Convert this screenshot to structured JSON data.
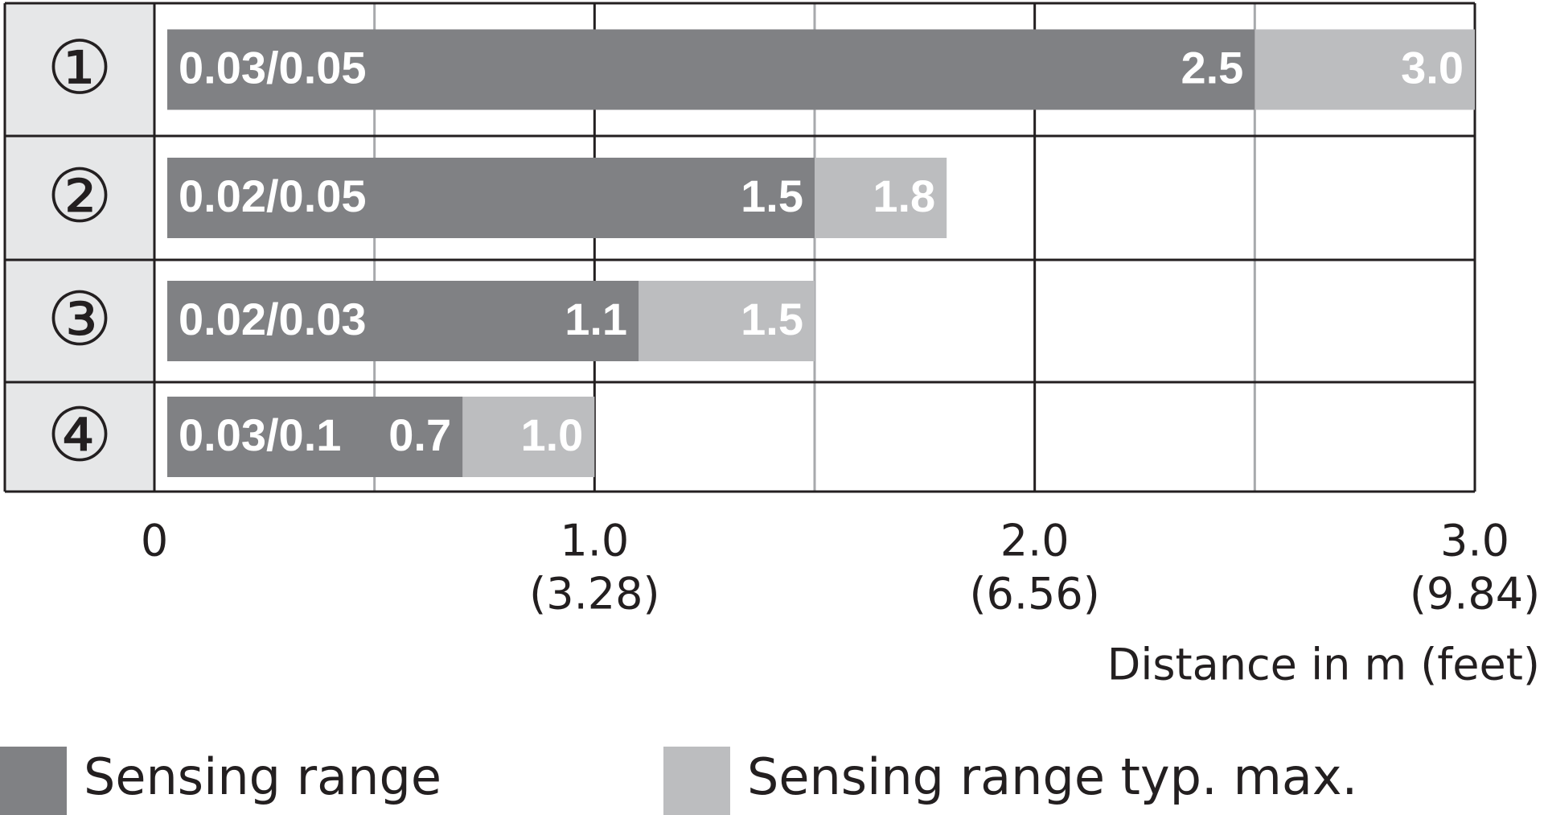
{
  "chart_data": {
    "type": "bar",
    "orientation": "horizontal",
    "categories": [
      "①",
      "②",
      "③",
      "④"
    ],
    "min_labels": [
      "0.03/0.05",
      "0.02/0.05",
      "0.02/0.03",
      "0.03/0.1"
    ],
    "series": [
      {
        "name": "Sensing range typ. max.",
        "color": "#bcbdbf",
        "values": [
          3.0,
          1.8,
          1.5,
          1.0
        ],
        "value_labels": [
          "3.0",
          "1.8",
          "1.5",
          "1.0"
        ]
      },
      {
        "name": "Sensing range",
        "color": "#808184",
        "values": [
          2.5,
          1.5,
          1.1,
          0.7
        ]
      }
    ],
    "xlim": [
      0,
      3
    ],
    "xticks": [
      0,
      {
        "value": 1,
        "label": "1.0"
      },
      {
        "value": 2,
        "label": "2.0"
      },
      {
        "value": 3,
        "label": "3.0"
      }
    ],
    "xtick_sublabels": [
      null,
      "(3.28)",
      "(6.56)",
      "(9.84)"
    ],
    "minor_xticks": [
      0.5,
      1.5,
      2.5
    ],
    "xlabel": "Distance in m (feet)",
    "grid": true,
    "legend_order": [
      1,
      0
    ],
    "legend": "bottom"
  }
}
